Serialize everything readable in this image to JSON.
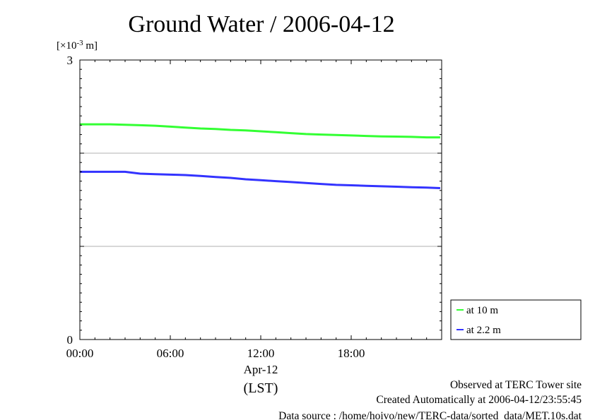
{
  "chart_data": {
    "type": "line",
    "title": "Ground Water / 2006-04-12",
    "yunit_prefix": "[×10",
    "yunit_exp": "-3",
    "yunit_suffix": " m]",
    "ylim": [
      0,
      3
    ],
    "yticks": [
      {
        "value": 0,
        "label": "0"
      },
      {
        "value": 3,
        "label": "3"
      }
    ],
    "ygrid": [
      1,
      2
    ],
    "xlim": [
      0,
      24
    ],
    "xticks": [
      {
        "value": 0,
        "label": "00:00"
      },
      {
        "value": 6,
        "label": "06:00"
      },
      {
        "value": 12,
        "label": "12:00"
      },
      {
        "value": 18,
        "label": "18:00"
      }
    ],
    "date_label": "Apr-12",
    "tz_label": "(LST)",
    "grid": "horizontal",
    "legend_position": "lower-right outside",
    "series": [
      {
        "name": "at 10 m",
        "color": "#33ff33",
        "x": [
          0,
          1,
          2,
          3,
          4,
          5,
          6,
          7,
          8,
          9,
          10,
          11,
          12,
          13,
          14,
          15,
          16,
          17,
          18,
          19,
          20,
          21,
          22,
          23,
          23.9
        ],
        "y": [
          2.31,
          2.31,
          2.31,
          2.305,
          2.3,
          2.295,
          2.285,
          2.275,
          2.265,
          2.26,
          2.25,
          2.245,
          2.235,
          2.225,
          2.215,
          2.205,
          2.2,
          2.195,
          2.19,
          2.185,
          2.18,
          2.178,
          2.175,
          2.17,
          2.17
        ]
      },
      {
        "name": "at 2.2 m",
        "color": "#3333ff",
        "x": [
          0,
          1,
          2,
          3,
          4,
          5,
          6,
          7,
          8,
          9,
          10,
          11,
          12,
          13,
          14,
          15,
          16,
          17,
          18,
          19,
          20,
          21,
          22,
          23,
          23.9
        ],
        "y": [
          1.8,
          1.8,
          1.8,
          1.8,
          1.78,
          1.775,
          1.77,
          1.765,
          1.755,
          1.745,
          1.735,
          1.72,
          1.71,
          1.7,
          1.69,
          1.68,
          1.67,
          1.66,
          1.655,
          1.65,
          1.645,
          1.64,
          1.635,
          1.63,
          1.625
        ]
      }
    ]
  },
  "footer": {
    "line1": "Observed at TERC Tower site",
    "line2": "Created Automatically at 2006-04-12/23:55:45",
    "line3": "Data source : /home/hoivo/new/TERC-data/sorted_data/MET.10s.dat"
  }
}
